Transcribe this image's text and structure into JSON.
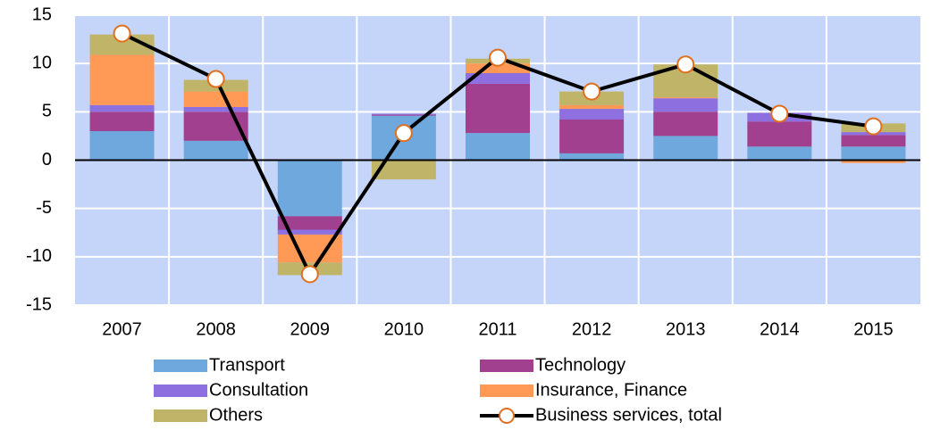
{
  "chart_data": {
    "type": "bar",
    "stacked": true,
    "categories": [
      "2007",
      "2008",
      "2009",
      "2010",
      "2011",
      "2012",
      "2013",
      "2014",
      "2015"
    ],
    "series": [
      {
        "name": "Transport",
        "color": "#6fa8dc",
        "values": [
          3.0,
          2.0,
          -5.8,
          4.6,
          2.8,
          0.7,
          2.5,
          1.4,
          1.4
        ]
      },
      {
        "name": "Technology",
        "color": "#a0408f",
        "values": [
          2.0,
          3.0,
          -1.4,
          0.1,
          5.1,
          3.5,
          2.5,
          2.6,
          1.2
        ]
      },
      {
        "name": "Consultation",
        "color": "#8d6fe0",
        "values": [
          0.7,
          0.5,
          -0.5,
          0.1,
          1.1,
          1.1,
          1.4,
          0.9,
          0.3
        ]
      },
      {
        "name": "Insurance, Finance",
        "color": "#ff9955",
        "values": [
          5.2,
          1.6,
          -2.9,
          0,
          1.0,
          0.4,
          0.1,
          0,
          -0.3
        ]
      },
      {
        "name": "Others",
        "color": "#c0b468",
        "values": [
          2.1,
          1.2,
          -1.3,
          -2.0,
          0.5,
          1.4,
          3.4,
          0,
          0.9
        ]
      },
      {
        "name": "Business services, total",
        "type": "line",
        "color": "#000000",
        "marker_color": "#e07020",
        "values": [
          13.1,
          8.4,
          -11.8,
          2.8,
          10.6,
          7.1,
          9.9,
          4.8,
          3.5
        ]
      }
    ],
    "ylim": [
      -15,
      15
    ],
    "yticks": [
      -15,
      -10,
      -5,
      0,
      5,
      10,
      15
    ],
    "grid": true,
    "plot_background": "#c5d5fa",
    "legend": "bottom"
  }
}
